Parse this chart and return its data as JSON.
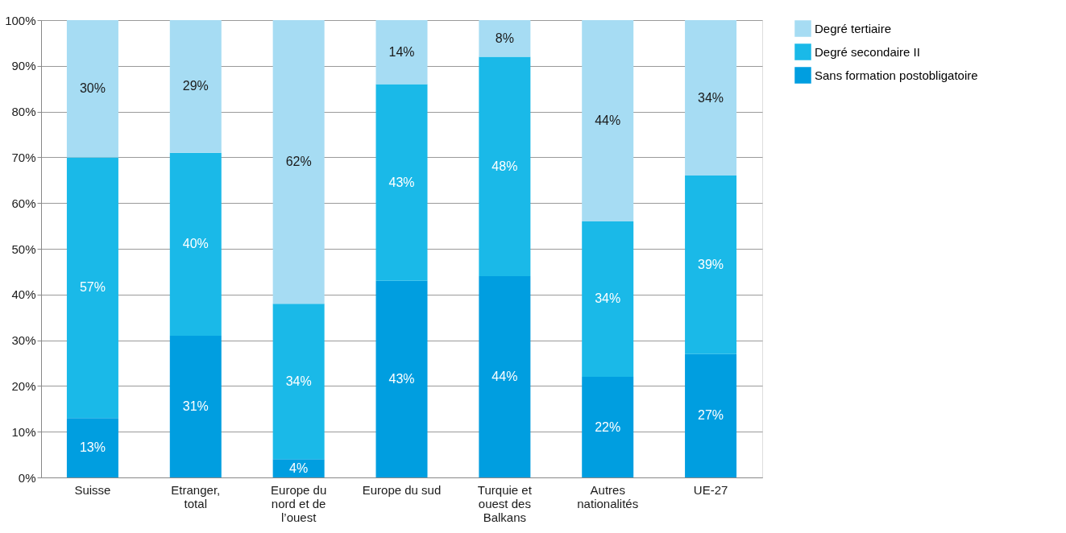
{
  "chart_data": {
    "type": "bar",
    "stacked": true,
    "categories": [
      "Suisse",
      "Etranger, total",
      "Europe du nord et de l’ouest",
      "Europe du sud",
      "Turquie et ouest des Balkans",
      "Autres nationalités",
      "UE-27"
    ],
    "series": [
      {
        "name": "Sans formation postobligatoire",
        "color": "#009ee0",
        "values": [
          13,
          31,
          4,
          43,
          44,
          22,
          27
        ],
        "value_labels": [
          "13%",
          "31%",
          "4%",
          "43%",
          "44%",
          "22%",
          "27%"
        ]
      },
      {
        "name": "Degré secondaire II",
        "color": "#1ab9e8",
        "values": [
          57,
          40,
          34,
          43,
          48,
          34,
          39
        ],
        "value_labels": [
          "57%",
          "40%",
          "34%",
          "43%",
          "48%",
          "34%",
          "39%"
        ]
      },
      {
        "name": "Degré tertiaire",
        "color": "#a6dcf3",
        "values": [
          30,
          29,
          62,
          14,
          8,
          44,
          34
        ],
        "value_labels": [
          "30%",
          "29%",
          "62%",
          "14%",
          "8%",
          "44%",
          "34%"
        ]
      }
    ],
    "ylim": [
      0,
      100
    ],
    "yticks": [
      {
        "value": 0,
        "label": "0%"
      },
      {
        "value": 10,
        "label": "10%"
      },
      {
        "value": 20,
        "label": "20%"
      },
      {
        "value": 30,
        "label": "30%"
      },
      {
        "value": 40,
        "label": "40%"
      },
      {
        "value": 50,
        "label": "50%"
      },
      {
        "value": 60,
        "label": "60%"
      },
      {
        "value": 70,
        "label": "70%"
      },
      {
        "value": 80,
        "label": "80%"
      },
      {
        "value": 90,
        "label": "90%"
      },
      {
        "value": 100,
        "label": "100%"
      }
    ],
    "grid": "y",
    "legend": "top right"
  }
}
